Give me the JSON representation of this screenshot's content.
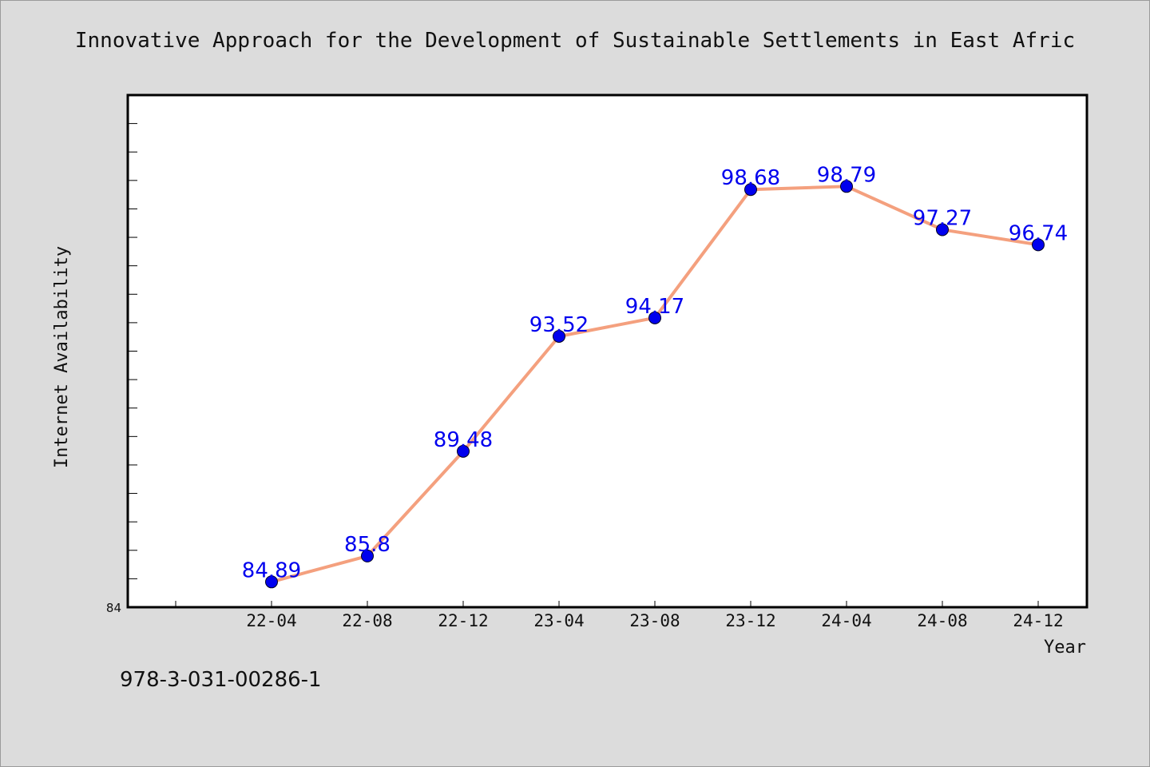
{
  "chart_data": {
    "type": "line",
    "title": "Innovative Approach for the Development of Sustainable Settlements in East Afric",
    "xlabel": "Year",
    "ylabel": "Internet Availability",
    "categories": [
      "22-04",
      "22-08",
      "22-12",
      "23-04",
      "23-08",
      "23-12",
      "24-04",
      "24-08",
      "24-12"
    ],
    "series": [
      {
        "values": [
          84.89,
          85.8,
          89.48,
          93.52,
          94.17,
          98.68,
          98.79,
          97.27,
          96.74
        ],
        "data_labels": [
          "84.89",
          "85.8",
          "89.48",
          "93.52",
          "94.17",
          "98.68",
          "98.79",
          "97.27",
          "96.74"
        ]
      }
    ],
    "ylim": [
      84,
      102
    ],
    "y_tick_labels": [
      "84"
    ],
    "grid": false,
    "line_color": "#f4a07e",
    "marker_color": "#0000ee",
    "label_color": "#0000ee"
  },
  "footer": {
    "isbn": "978-3-031-00286-1"
  }
}
